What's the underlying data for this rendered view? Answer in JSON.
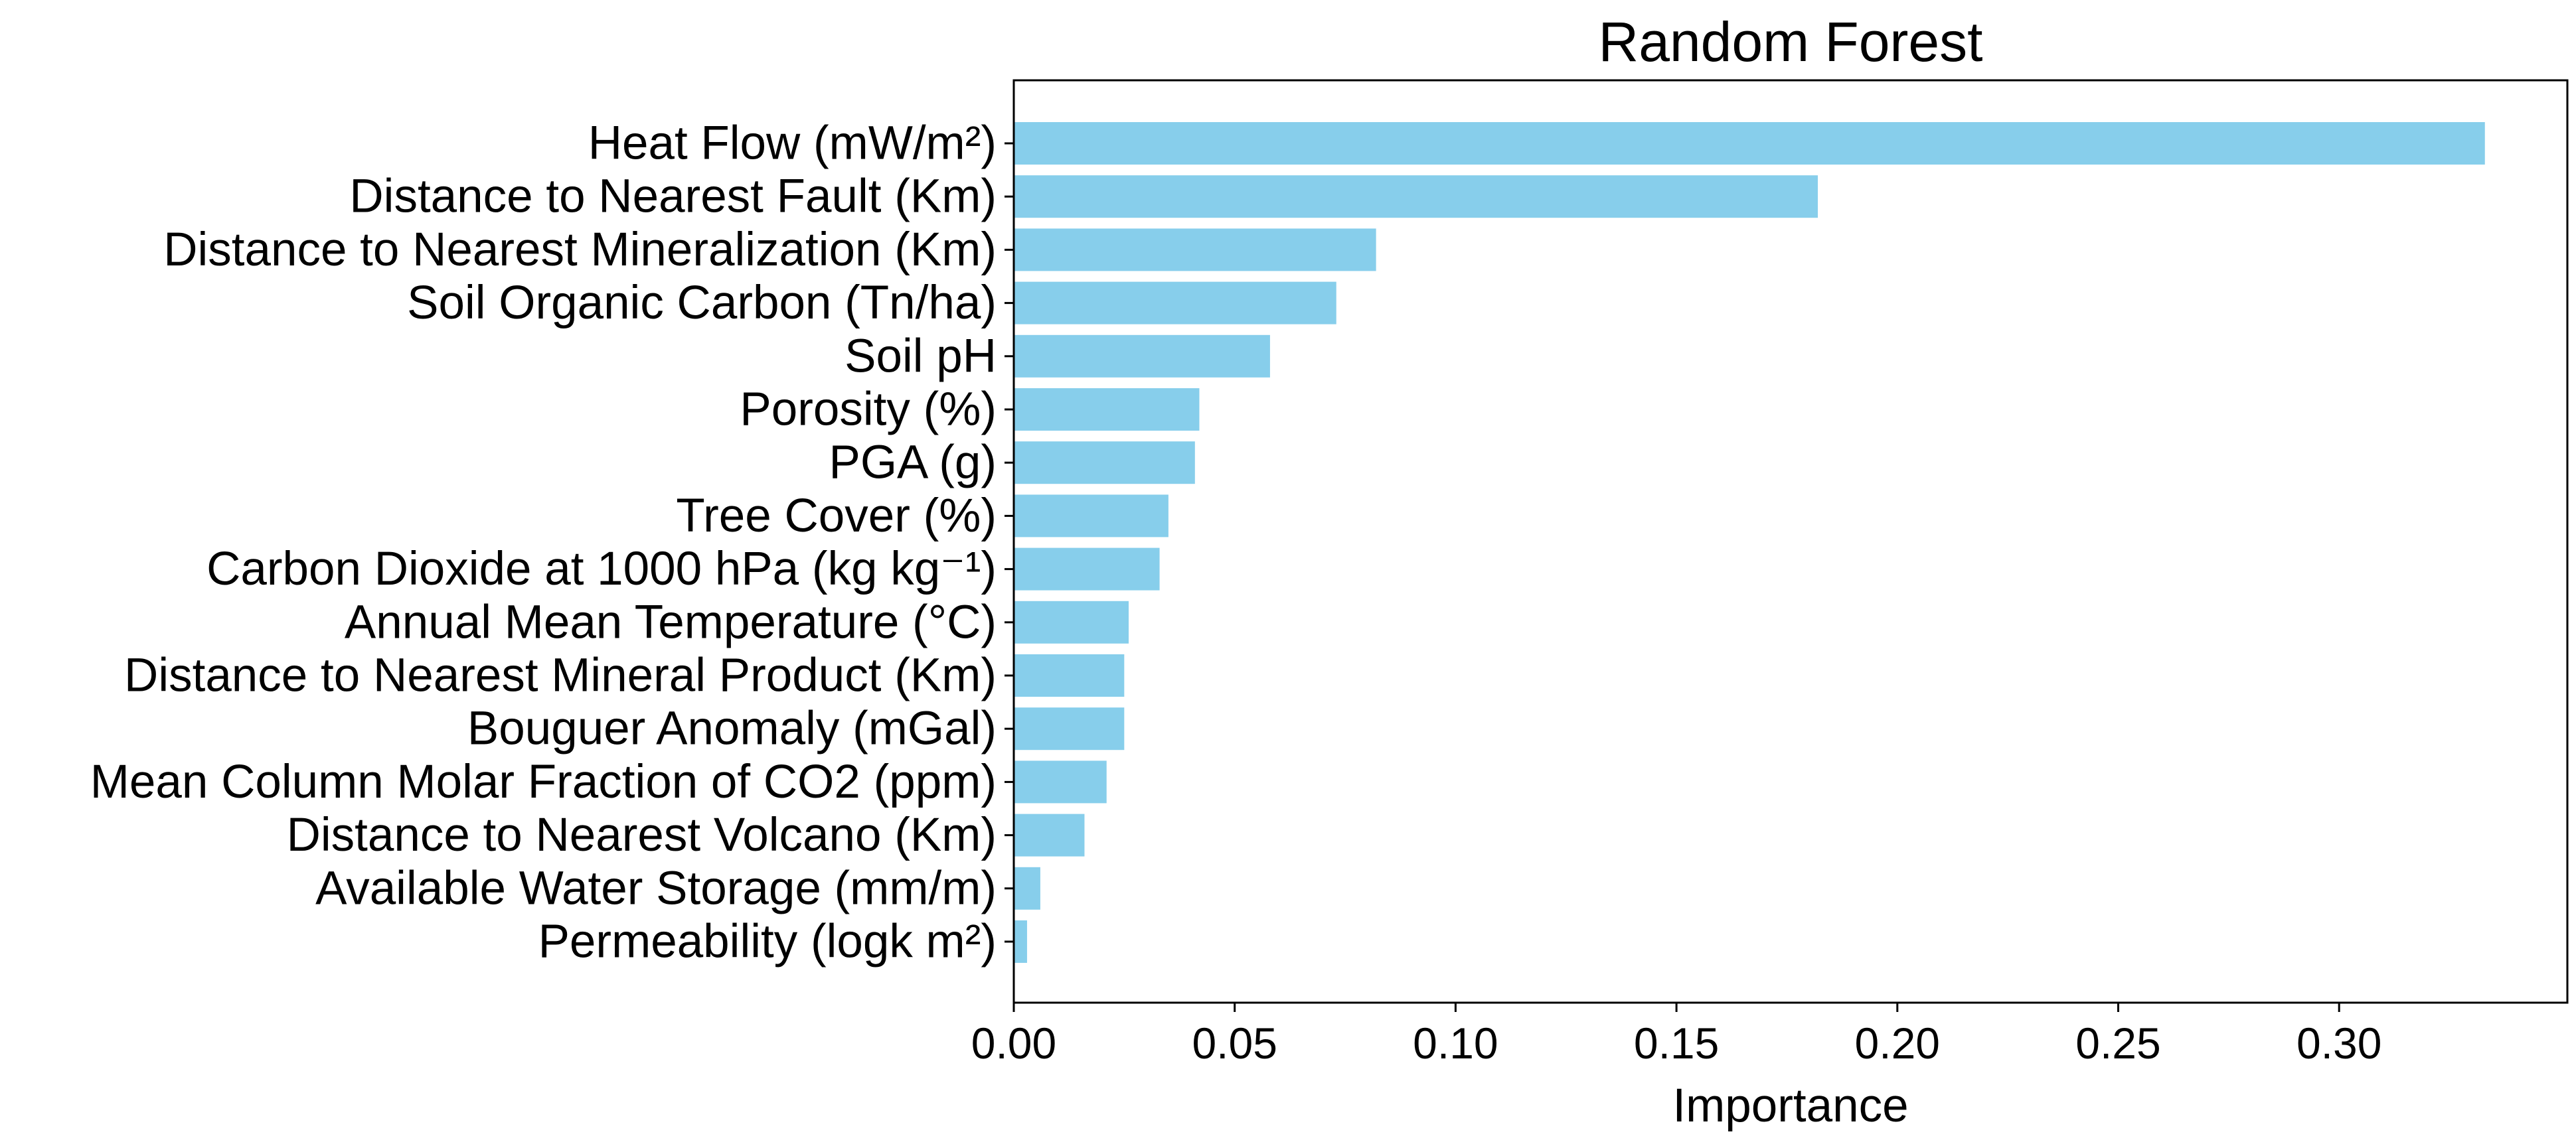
{
  "chart_data": {
    "type": "bar",
    "orientation": "horizontal",
    "title": "Random Forest",
    "xlabel": "Importance",
    "ylabel": "",
    "xlim": [
      0,
      0.35
    ],
    "xticks": [
      0.0,
      0.05,
      0.1,
      0.15,
      0.2,
      0.25,
      0.3
    ],
    "xtick_labels": [
      "0.00",
      "0.05",
      "0.10",
      "0.15",
      "0.20",
      "0.25",
      "0.30"
    ],
    "grid": false,
    "bar_color": "#87ceeb",
    "categories": [
      "Heat Flow (mW/m²)",
      "Distance to Nearest Fault (Km)",
      "Distance to Nearest Mineralization (Km)",
      "Soil Organic Carbon (Tn/ha)",
      "Soil pH",
      "Porosity (%)",
      "PGA (g)",
      "Tree Cover (%)",
      "Carbon Dioxide at 1000 hPa (kg kg⁻¹)",
      "Annual Mean Temperature (°C)",
      "Distance to Nearest Mineral Product (Km)",
      "Bouguer Anomaly (mGal)",
      "Mean Column Molar Fraction of CO2 (ppm)",
      "Distance to Nearest Volcano (Km)",
      "Available Water Storage (mm/m)",
      "Permeability (logk m²)"
    ],
    "values": [
      0.333,
      0.182,
      0.082,
      0.073,
      0.058,
      0.042,
      0.041,
      0.035,
      0.033,
      0.026,
      0.025,
      0.025,
      0.021,
      0.016,
      0.006,
      0.003
    ]
  }
}
